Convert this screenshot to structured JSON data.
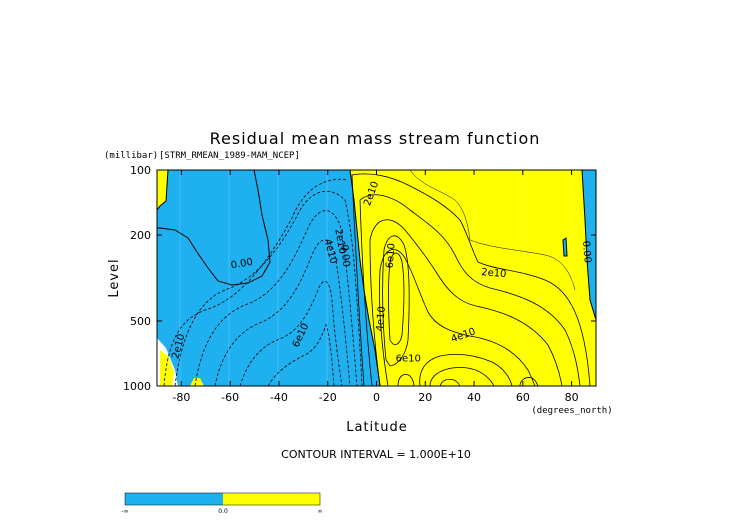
{
  "chart_data": {
    "type": "contour",
    "title": "Residual mean mass stream function",
    "subtitle": "[STRM_RMEAN_1989-MAM_NCEP]",
    "xlabel": "Latitude",
    "xunit": "(degrees_north)",
    "ylabel": "Level",
    "yunit": "(millibar)",
    "x_ticks": [
      -80,
      -60,
      -40,
      -20,
      0,
      20,
      40,
      60,
      80
    ],
    "x_tick_labels": [
      "-80",
      "-60",
      "-40",
      "-20",
      "0",
      "20",
      "40",
      "60",
      "80"
    ],
    "xlim": [
      -90,
      90
    ],
    "y_ticks": [
      100,
      200,
      500,
      1000
    ],
    "y_tick_labels": [
      "100",
      "200",
      "500",
      "1000"
    ],
    "ylim": [
      1000,
      100
    ],
    "y_scale": "log",
    "contour_interval_text": "CONTOUR INTERVAL = 1.000E+10",
    "contour_labels": [
      {
        "text": "0.00",
        "lat": -55,
        "p": 280,
        "rot": -10
      },
      {
        "text": "2e10",
        "lat": -16,
        "p": 215,
        "rot": 80
      },
      {
        "text": "4e10",
        "lat": -20,
        "p": 240,
        "rot": 75
      },
      {
        "text": "0.00",
        "lat": -14,
        "p": 250,
        "rot": 85
      },
      {
        "text": "2e10",
        "lat": -80,
        "p": 660,
        "rot": -75
      },
      {
        "text": "6e10",
        "lat": -30,
        "p": 590,
        "rot": -65
      },
      {
        "text": "2e10",
        "lat": -1,
        "p": 130,
        "rot": -70
      },
      {
        "text": "6e10",
        "lat": 7,
        "p": 250,
        "rot": -85
      },
      {
        "text": "4e10",
        "lat": 3,
        "p": 490,
        "rot": -85
      },
      {
        "text": "2e10",
        "lat": 48,
        "p": 310,
        "rot": 5
      },
      {
        "text": "4e10",
        "lat": 36,
        "p": 600,
        "rot": -20
      },
      {
        "text": "6e10",
        "lat": 13,
        "p": 770,
        "rot": 0
      },
      {
        "text": "0.00",
        "lat": 85,
        "p": 240,
        "rot": 85
      }
    ],
    "colorbar": {
      "segments": [
        {
          "color": "#1fb0f0",
          "label_left": "-∞",
          "label_right": "0.0"
        },
        {
          "color": "#ffff00",
          "label_left": "0.0",
          "label_right": "∞"
        }
      ],
      "labels": [
        "-∞",
        "0.0",
        "∞"
      ]
    },
    "colors": {
      "negative_fill": "#1fb0f0",
      "positive_fill": "#ffff00",
      "background": "#ffffff"
    }
  }
}
